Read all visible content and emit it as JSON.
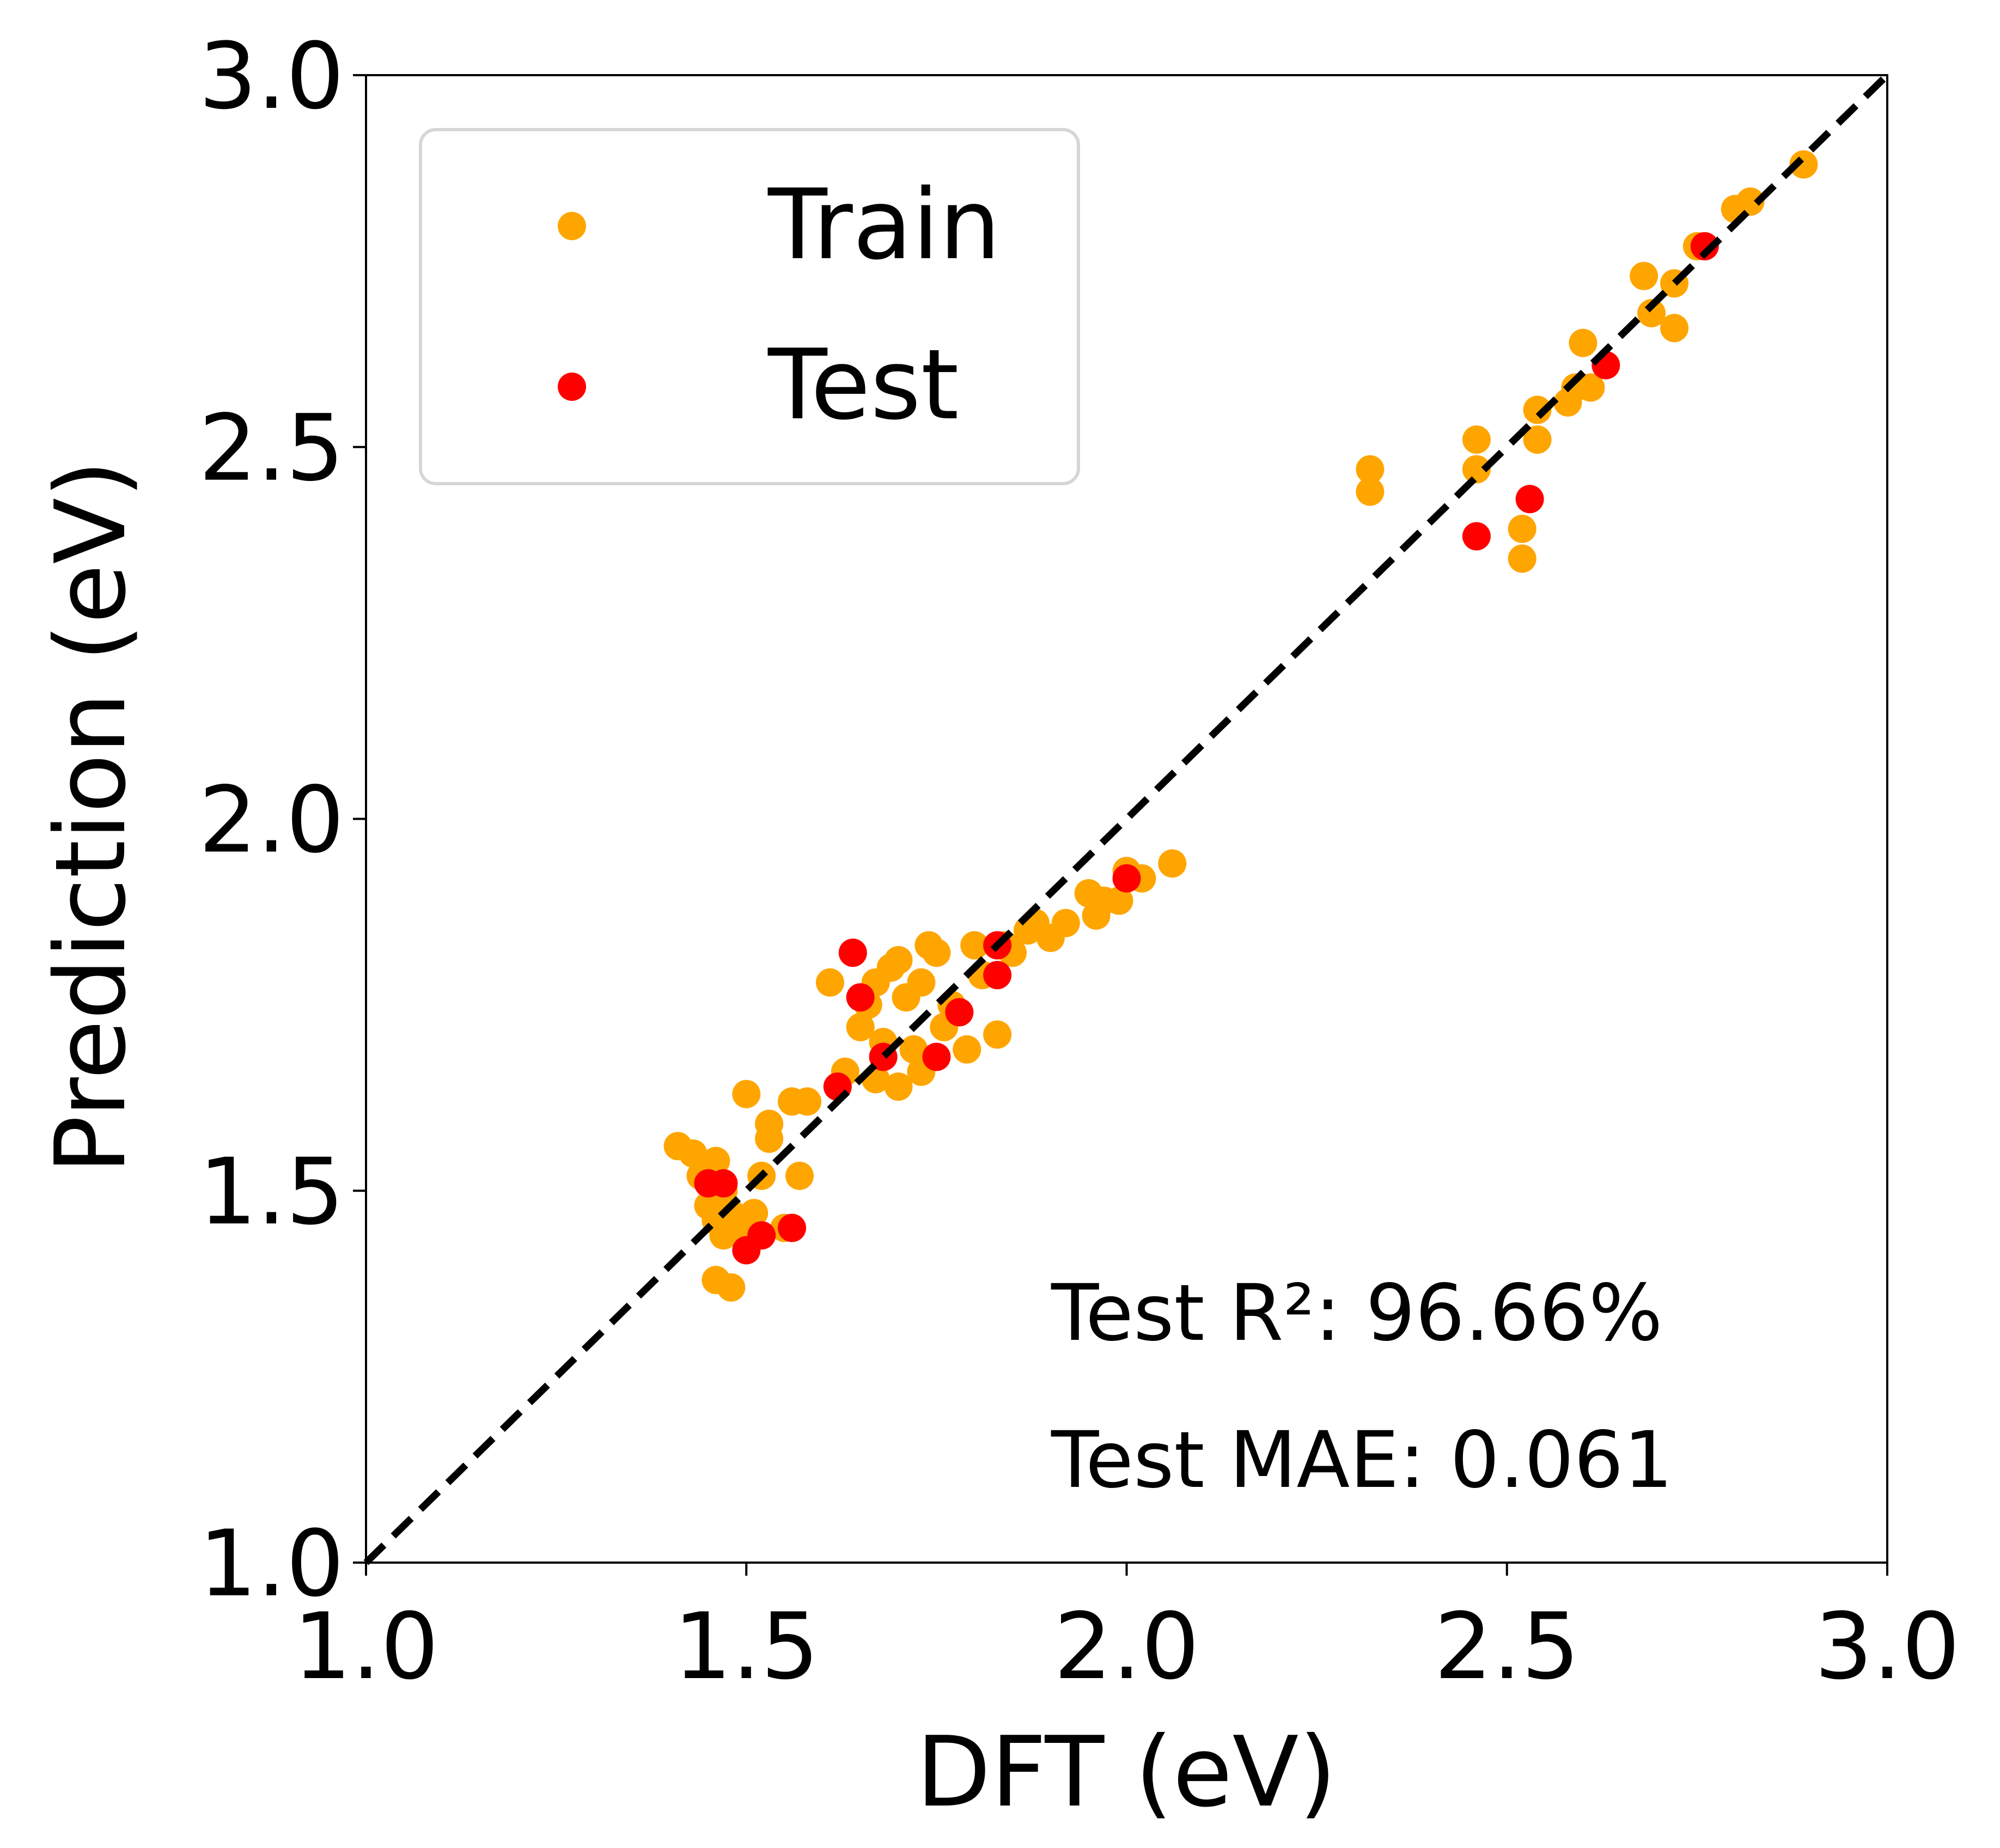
{
  "chart_data": {
    "type": "scatter",
    "xlabel": "DFT (eV)",
    "ylabel": "Prediction (eV)",
    "xlim": [
      1.0,
      3.0
    ],
    "ylim": [
      1.0,
      3.0
    ],
    "xticks": [
      "1.0",
      "1.5",
      "2.0",
      "2.5",
      "3.0"
    ],
    "yticks": [
      "1.0",
      "1.5",
      "2.0",
      "2.5",
      "3.0"
    ],
    "grid": false,
    "legend_position": "top-left",
    "reference_line": {
      "style": "dashed",
      "color": "#000000",
      "from": [
        1.0,
        1.0
      ],
      "to": [
        3.0,
        3.0
      ]
    },
    "series": [
      {
        "name": "Train",
        "color": "#FFA500",
        "points": [
          [
            1.41,
            1.56
          ],
          [
            1.43,
            1.55
          ],
          [
            1.46,
            1.54
          ],
          [
            1.44,
            1.52
          ],
          [
            1.47,
            1.5
          ],
          [
            1.45,
            1.48
          ],
          [
            1.46,
            1.46
          ],
          [
            1.47,
            1.44
          ],
          [
            1.48,
            1.47
          ],
          [
            1.49,
            1.45
          ],
          [
            1.5,
            1.43
          ],
          [
            1.51,
            1.47
          ],
          [
            1.52,
            1.52
          ],
          [
            1.53,
            1.57
          ],
          [
            1.53,
            1.59
          ],
          [
            1.5,
            1.63
          ],
          [
            1.56,
            1.62
          ],
          [
            1.58,
            1.62
          ],
          [
            1.57,
            1.52
          ],
          [
            1.55,
            1.45
          ],
          [
            1.46,
            1.38
          ],
          [
            1.48,
            1.37
          ],
          [
            1.61,
            1.78
          ],
          [
            1.63,
            1.66
          ],
          [
            1.65,
            1.72
          ],
          [
            1.66,
            1.75
          ],
          [
            1.67,
            1.65
          ],
          [
            1.67,
            1.78
          ],
          [
            1.68,
            1.7
          ],
          [
            1.69,
            1.8
          ],
          [
            1.7,
            1.64
          ],
          [
            1.7,
            1.81
          ],
          [
            1.71,
            1.76
          ],
          [
            1.72,
            1.69
          ],
          [
            1.73,
            1.78
          ],
          [
            1.73,
            1.66
          ],
          [
            1.74,
            1.83
          ],
          [
            1.75,
            1.82
          ],
          [
            1.76,
            1.72
          ],
          [
            1.77,
            1.75
          ],
          [
            1.78,
            1.74
          ],
          [
            1.79,
            1.69
          ],
          [
            1.8,
            1.83
          ],
          [
            1.81,
            1.79
          ],
          [
            1.83,
            1.71
          ],
          [
            1.84,
            1.83
          ],
          [
            1.85,
            1.82
          ],
          [
            1.87,
            1.85
          ],
          [
            1.88,
            1.86
          ],
          [
            1.9,
            1.84
          ],
          [
            1.92,
            1.86
          ],
          [
            1.95,
            1.9
          ],
          [
            1.96,
            1.87
          ],
          [
            1.97,
            1.89
          ],
          [
            1.99,
            1.89
          ],
          [
            2.0,
            1.93
          ],
          [
            2.02,
            1.92
          ],
          [
            2.06,
            1.94
          ],
          [
            2.32,
            2.47
          ],
          [
            2.32,
            2.44
          ],
          [
            2.46,
            2.51
          ],
          [
            2.46,
            2.47
          ],
          [
            2.52,
            2.39
          ],
          [
            2.52,
            2.35
          ],
          [
            2.54,
            2.51
          ],
          [
            2.54,
            2.55
          ],
          [
            2.58,
            2.56
          ],
          [
            2.59,
            2.58
          ],
          [
            2.6,
            2.64
          ],
          [
            2.61,
            2.58
          ],
          [
            2.68,
            2.73
          ],
          [
            2.69,
            2.68
          ],
          [
            2.72,
            2.72
          ],
          [
            2.72,
            2.66
          ],
          [
            2.75,
            2.77
          ],
          [
            2.8,
            2.82
          ],
          [
            2.82,
            2.83
          ],
          [
            2.89,
            2.88
          ]
        ]
      },
      {
        "name": "Test",
        "color": "#FF0000",
        "points": [
          [
            1.45,
            1.51
          ],
          [
            1.47,
            1.51
          ],
          [
            1.5,
            1.42
          ],
          [
            1.52,
            1.44
          ],
          [
            1.56,
            1.45
          ],
          [
            1.62,
            1.64
          ],
          [
            1.64,
            1.82
          ],
          [
            1.65,
            1.76
          ],
          [
            1.68,
            1.68
          ],
          [
            1.75,
            1.68
          ],
          [
            1.78,
            1.74
          ],
          [
            1.83,
            1.79
          ],
          [
            1.83,
            1.83
          ],
          [
            2.0,
            1.92
          ],
          [
            2.46,
            2.38
          ],
          [
            2.53,
            2.43
          ],
          [
            2.63,
            2.61
          ],
          [
            2.76,
            2.77
          ]
        ]
      }
    ],
    "annotations": [
      "Test R²: 96.66%",
      "Test MAE: 0.061"
    ]
  }
}
